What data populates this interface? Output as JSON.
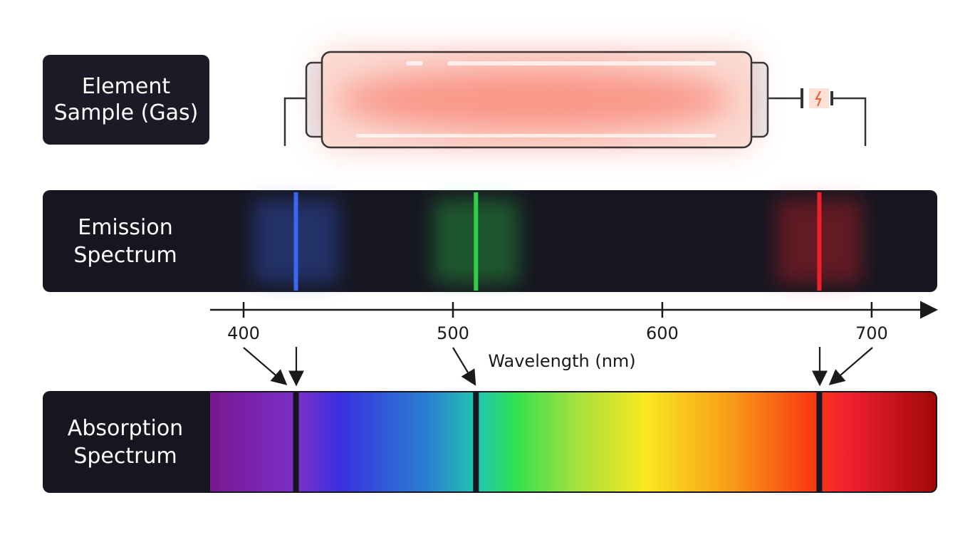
{
  "sample": {
    "label": [
      "Element",
      "Sample (Gas)"
    ]
  },
  "emission": {
    "label": [
      "Emission",
      "Spectrum"
    ],
    "lines": [
      {
        "wavelength": 425,
        "color": "#3a66f0"
      },
      {
        "wavelength": 511,
        "color": "#2fcf4a"
      },
      {
        "wavelength": 675,
        "color": "#f0202a"
      }
    ]
  },
  "absorption": {
    "label": [
      "Absorption",
      "Spectrum"
    ],
    "lines": [
      425,
      511,
      675
    ]
  },
  "axis": {
    "title": "Wavelength (nm)",
    "range": [
      384,
      731
    ],
    "ticks": [
      400,
      500,
      600,
      700
    ]
  }
}
